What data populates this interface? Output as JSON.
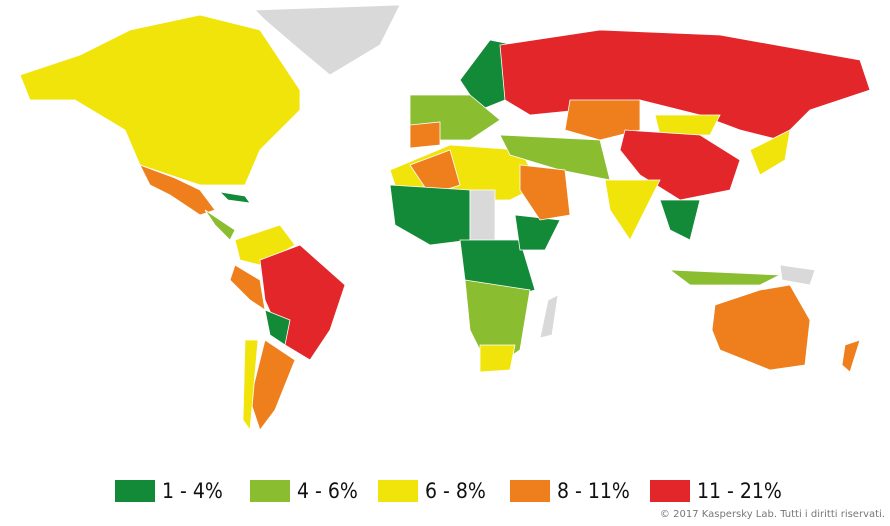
{
  "legend": {
    "items": [
      {
        "label": "1 - 4%",
        "color": "#128a37"
      },
      {
        "label": "4 - 6%",
        "color": "#8abd30"
      },
      {
        "label": "6 - 8%",
        "color": "#f1e40a"
      },
      {
        "label": "8 - 11%",
        "color": "#ee7f1c"
      },
      {
        "label": "11 - 21%",
        "color": "#e3262a"
      }
    ]
  },
  "copyright": "© 2017 Kaspersky Lab. Tutti i diritti riservati."
}
